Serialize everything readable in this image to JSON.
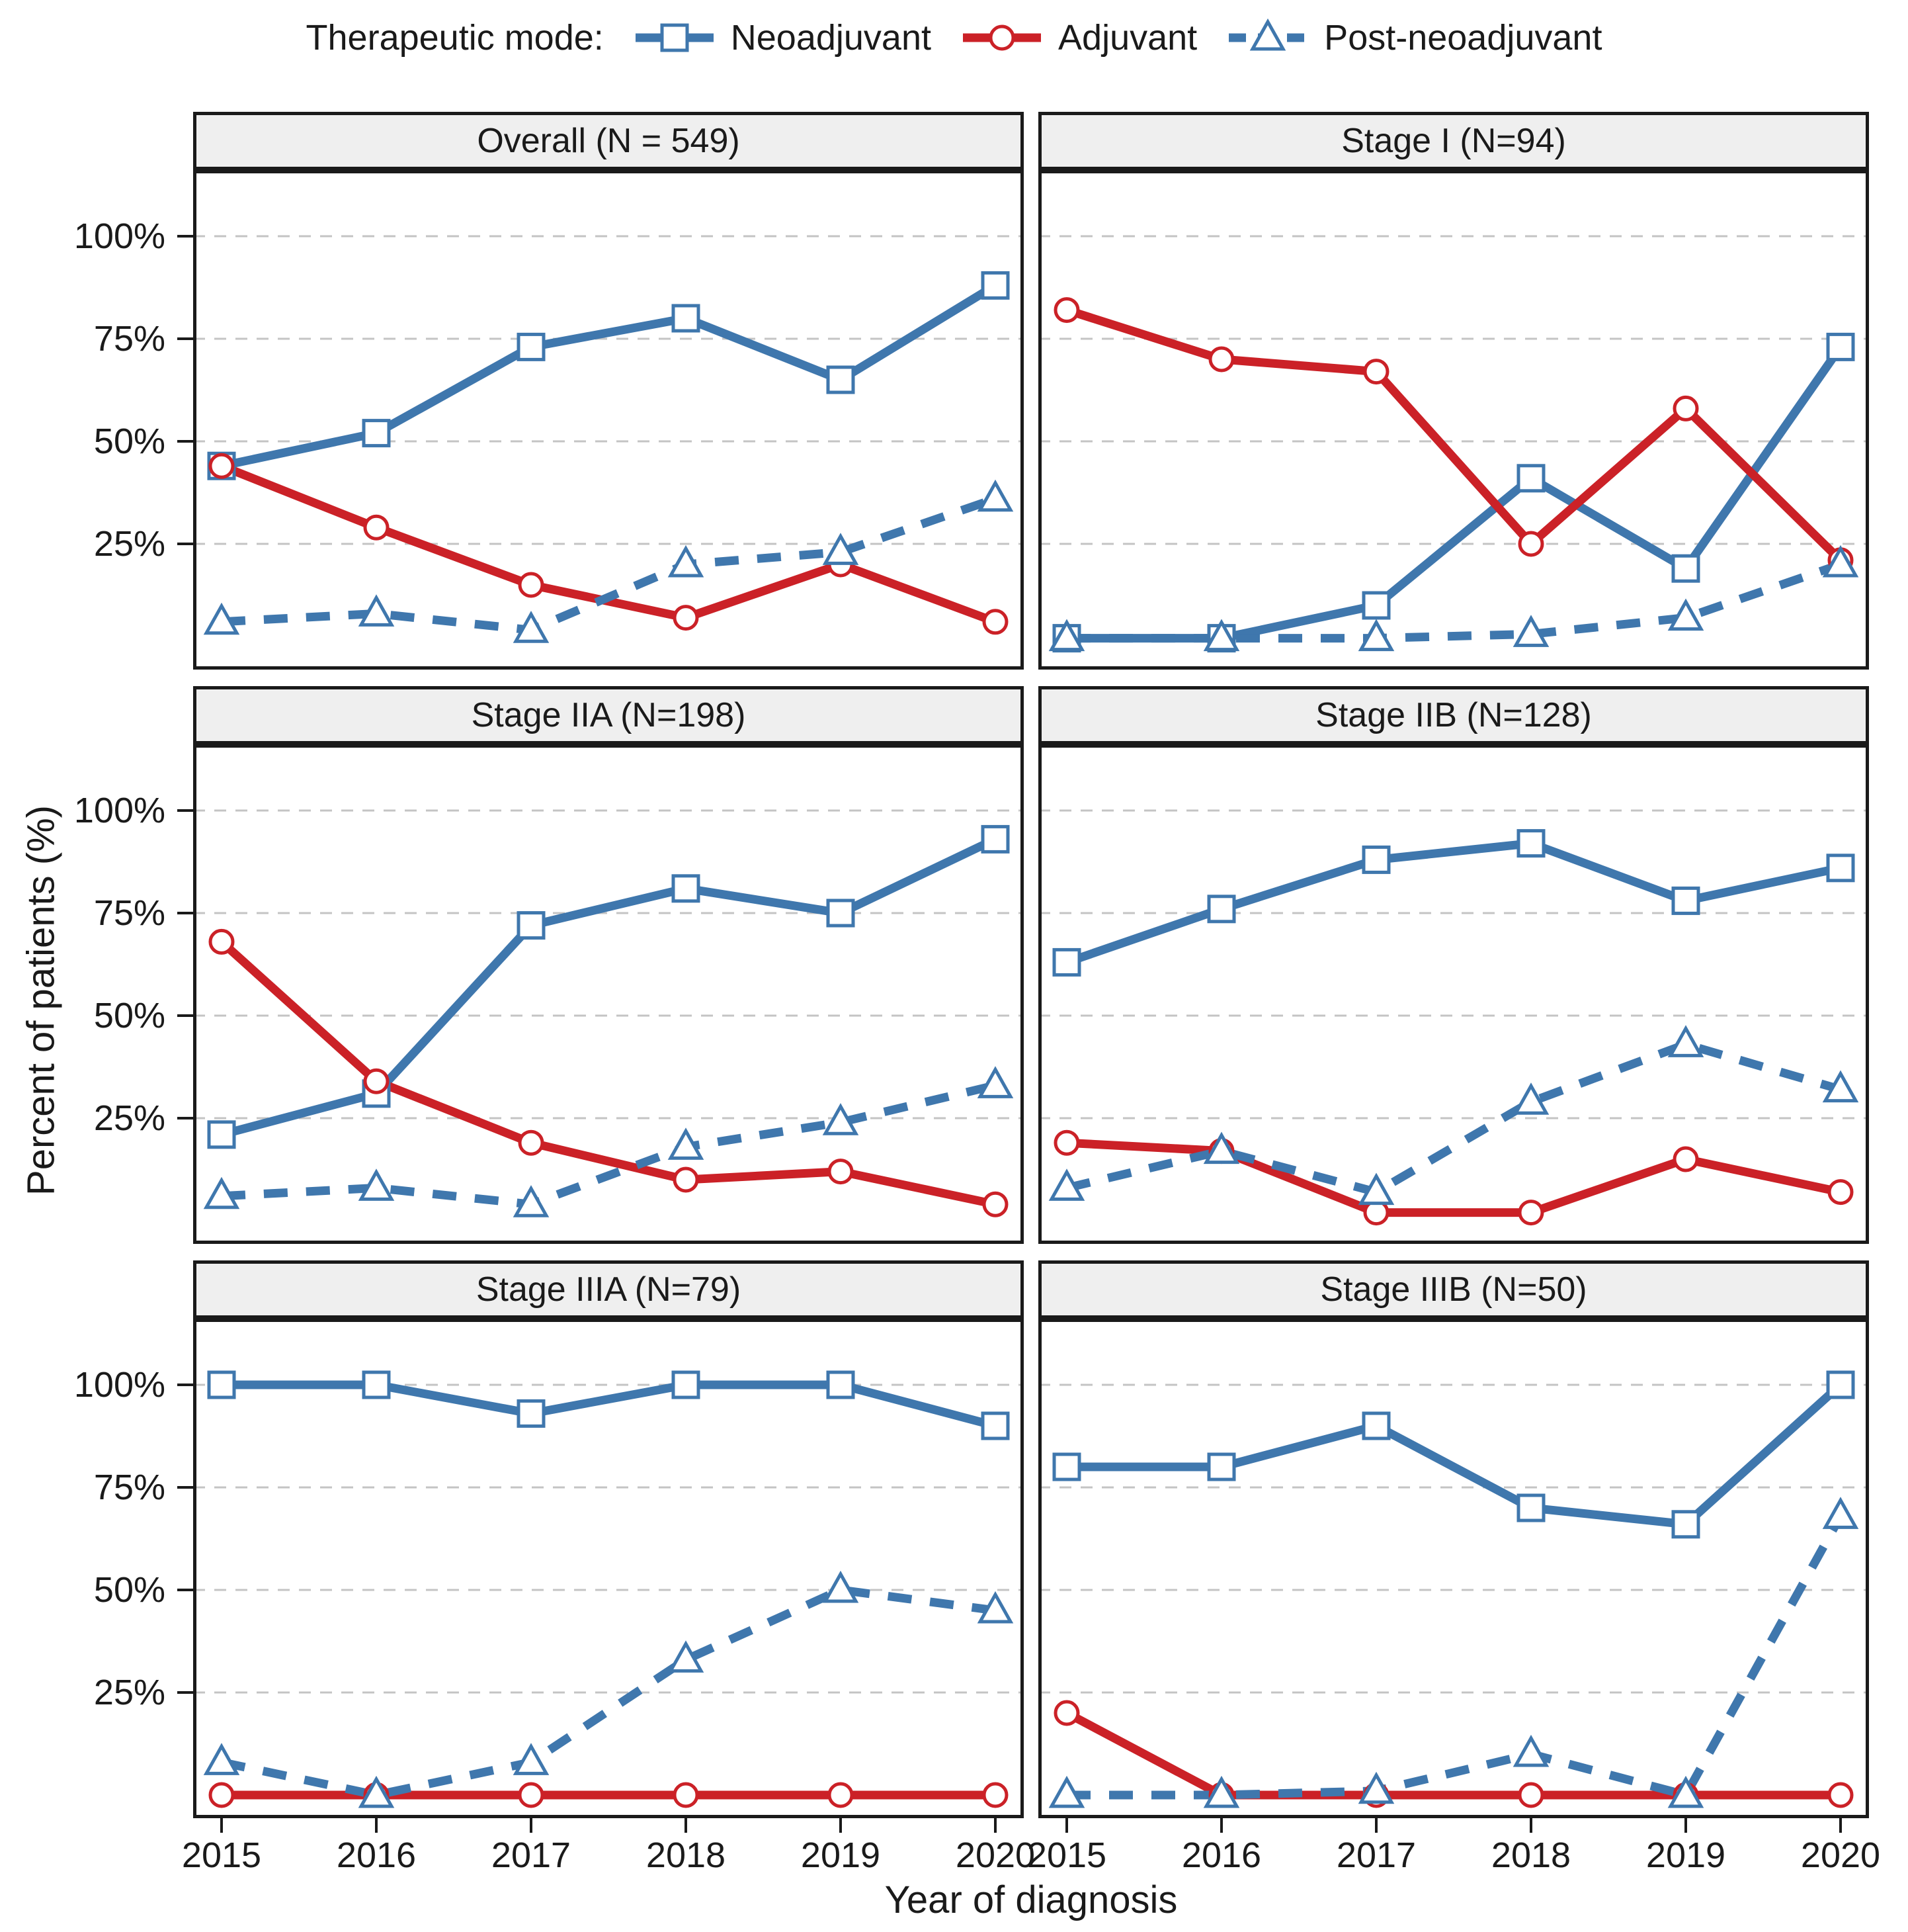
{
  "legend": {
    "title": "Therapeutic mode:",
    "items": [
      {
        "label": "Neoadjuvant",
        "color": "#3f77ad",
        "marker": "square",
        "line": "solid"
      },
      {
        "label": "Adjuvant",
        "color": "#cb2127",
        "marker": "circle",
        "line": "solid"
      },
      {
        "label": "Post-neoadjuvant",
        "color": "#3f77ad",
        "marker": "triangle",
        "line": "dashed"
      }
    ]
  },
  "axes": {
    "y_title": "Percent of patients (%)",
    "x_title": "Year of diagnosis",
    "y_ticks": [
      {
        "label": "100%",
        "value": 100
      },
      {
        "label": "75%",
        "value": 75
      },
      {
        "label": "50%",
        "value": 50
      },
      {
        "label": "25%",
        "value": 25
      }
    ],
    "x_ticks": [
      "2015",
      "2016",
      "2017",
      "2018",
      "2019",
      "2020"
    ],
    "y_range": [
      0,
      100
    ],
    "gridlines": [
      25,
      50,
      75,
      100
    ],
    "grid_on": true,
    "grid_color": "#c4c4c4",
    "legend_position": "top"
  },
  "chart_data": [
    {
      "type": "line",
      "title": "Overall (N = 549)",
      "x": [
        2015,
        2016,
        2017,
        2018,
        2019,
        2020
      ],
      "series": [
        {
          "name": "Neoadjuvant",
          "values": [
            44,
            52,
            73,
            80,
            65,
            88
          ]
        },
        {
          "name": "Adjuvant",
          "values": [
            44,
            29,
            15,
            7,
            20,
            6
          ]
        },
        {
          "name": "Post-neoadjuvant",
          "values": [
            6,
            8,
            4,
            20,
            23,
            36
          ]
        }
      ]
    },
    {
      "type": "line",
      "title": "Stage I (N=94)",
      "x": [
        2015,
        2016,
        2017,
        2018,
        2019,
        2020
      ],
      "series": [
        {
          "name": "Neoadjuvant",
          "values": [
            2,
            2,
            10,
            41,
            19,
            73
          ]
        },
        {
          "name": "Adjuvant",
          "values": [
            82,
            70,
            67,
            25,
            58,
            21
          ]
        },
        {
          "name": "Post-neoadjuvant",
          "values": [
            2,
            2,
            2,
            3,
            7,
            20
          ]
        }
      ]
    },
    {
      "type": "line",
      "title": "Stage IIA (N=198)",
      "x": [
        2015,
        2016,
        2017,
        2018,
        2019,
        2020
      ],
      "series": [
        {
          "name": "Neoadjuvant",
          "values": [
            21,
            31,
            72,
            81,
            75,
            93
          ]
        },
        {
          "name": "Adjuvant",
          "values": [
            68,
            34,
            19,
            10,
            12,
            4
          ]
        },
        {
          "name": "Post-neoadjuvant",
          "values": [
            6,
            8,
            4,
            18,
            24,
            33
          ]
        }
      ]
    },
    {
      "type": "line",
      "title": "Stage IIB (N=128)",
      "x": [
        2015,
        2016,
        2017,
        2018,
        2019,
        2020
      ],
      "series": [
        {
          "name": "Neoadjuvant",
          "values": [
            63,
            76,
            88,
            92,
            78,
            86
          ]
        },
        {
          "name": "Adjuvant",
          "values": [
            19,
            17,
            2,
            2,
            15,
            7
          ]
        },
        {
          "name": "Post-neoadjuvant",
          "values": [
            8,
            17,
            7,
            29,
            43,
            32
          ]
        }
      ]
    },
    {
      "type": "line",
      "title": "Stage IIIA (N=79)",
      "x": [
        2015,
        2016,
        2017,
        2018,
        2019,
        2020
      ],
      "series": [
        {
          "name": "Neoadjuvant",
          "values": [
            100,
            100,
            93,
            100,
            100,
            90
          ]
        },
        {
          "name": "Adjuvant",
          "values": [
            0,
            0,
            0,
            0,
            0,
            0
          ]
        },
        {
          "name": "Post-neoadjuvant",
          "values": [
            8,
            0,
            8,
            33,
            50,
            45
          ]
        }
      ]
    },
    {
      "type": "line",
      "title": "Stage IIIB (N=50)",
      "x": [
        2015,
        2016,
        2017,
        2018,
        2019,
        2020
      ],
      "series": [
        {
          "name": "Neoadjuvant",
          "values": [
            80,
            80,
            90,
            70,
            66,
            100
          ]
        },
        {
          "name": "Adjuvant",
          "values": [
            20,
            0,
            0,
            0,
            0,
            0
          ]
        },
        {
          "name": "Post-neoadjuvant",
          "values": [
            0,
            0,
            1,
            10,
            0,
            68
          ]
        }
      ]
    }
  ]
}
